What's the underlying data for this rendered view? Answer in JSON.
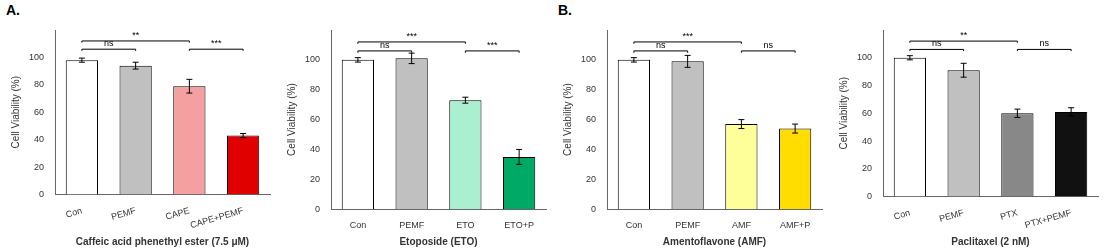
{
  "chart_data": [
    {
      "type": "bar",
      "title": "A.",
      "categories": [
        "Con",
        "PEMF",
        "CAPE",
        "CAPE+PEMF"
      ],
      "values": [
        98,
        94,
        79,
        43
      ],
      "errors": [
        1.5,
        2.5,
        5,
        1.5
      ],
      "colors": [
        "white",
        "#c0c0c0",
        "#f4a0a0",
        "#e00000"
      ],
      "xlabel": "Caffeic acid phenethyl ester (7.5 μM)",
      "ylabel": "Cell Viability (%)",
      "ylim": [
        0,
        120
      ],
      "yticks": [
        0,
        20,
        40,
        60,
        80,
        100
      ],
      "grid": false,
      "annotations": [
        {
          "from": "Con",
          "to": "PEMF",
          "y": 106,
          "text": "ns"
        },
        {
          "from": "Con",
          "to": "CAPE",
          "y": 112,
          "text": "**"
        },
        {
          "from": "CAPE",
          "to": "CAPE+PEMF",
          "y": 106,
          "text": "***"
        }
      ]
    },
    {
      "type": "bar",
      "categories": [
        "Con",
        "PEMF",
        "ETO",
        "ETO+P"
      ],
      "values": [
        100,
        101,
        73,
        35
      ],
      "errors": [
        1.5,
        3.5,
        2,
        5
      ],
      "colors": [
        "white",
        "#c0c0c0",
        "#aaf0d0",
        "#00aa66"
      ],
      "xlabel": "Etoposide (ETO)",
      "ylabel": "Cell Viability (%)",
      "ylim": [
        0,
        120
      ],
      "yticks": [
        0,
        20,
        40,
        60,
        80,
        100
      ],
      "grid": false,
      "annotations": [
        {
          "from": "Con",
          "to": "PEMF",
          "y": 106,
          "text": "ns"
        },
        {
          "from": "Con",
          "to": "ETO",
          "y": 112,
          "text": "***"
        },
        {
          "from": "ETO",
          "to": "ETO+P",
          "y": 106,
          "text": "***"
        }
      ]
    },
    {
      "type": "bar",
      "title": "B.",
      "categories": [
        "Con",
        "PEMF",
        "AMF",
        "AMF+P"
      ],
      "values": [
        100,
        99,
        57,
        54
      ],
      "errors": [
        1.5,
        4,
        3,
        3
      ],
      "colors": [
        "white",
        "#c0c0c0",
        "#ffff99",
        "#ffdd00"
      ],
      "xlabel": "Amentoflavone (AMF)",
      "ylabel": "Cell Viability (%)",
      "ylim": [
        0,
        120
      ],
      "yticks": [
        0,
        20,
        40,
        60,
        80,
        100
      ],
      "grid": false,
      "annotations": [
        {
          "from": "Con",
          "to": "PEMF",
          "y": 106,
          "text": "ns"
        },
        {
          "from": "Con",
          "to": "AMF",
          "y": 112,
          "text": "***"
        },
        {
          "from": "AMF",
          "to": "AMF+P",
          "y": 106,
          "text": "ns"
        }
      ]
    },
    {
      "type": "bar",
      "categories": [
        "Con",
        "PEMF",
        "PTX",
        "PTX+PEMF"
      ],
      "values": [
        100,
        91,
        60,
        61
      ],
      "errors": [
        1.5,
        5,
        3,
        3
      ],
      "colors": [
        "white",
        "#c0c0c0",
        "#888888",
        "#111111"
      ],
      "xlabel": "Paclitaxel (2 nM)",
      "ylabel": "Cell Viability (%)",
      "ylim": [
        0,
        120
      ],
      "yticks": [
        0,
        20,
        40,
        60,
        80,
        100
      ],
      "grid": false,
      "annotations": [
        {
          "from": "Con",
          "to": "PEMF",
          "y": 106,
          "text": "ns"
        },
        {
          "from": "Con",
          "to": "PTX",
          "y": 112,
          "text": "**"
        },
        {
          "from": "PTX",
          "to": "PTX+PEMF",
          "y": 106,
          "text": "ns"
        }
      ]
    }
  ]
}
